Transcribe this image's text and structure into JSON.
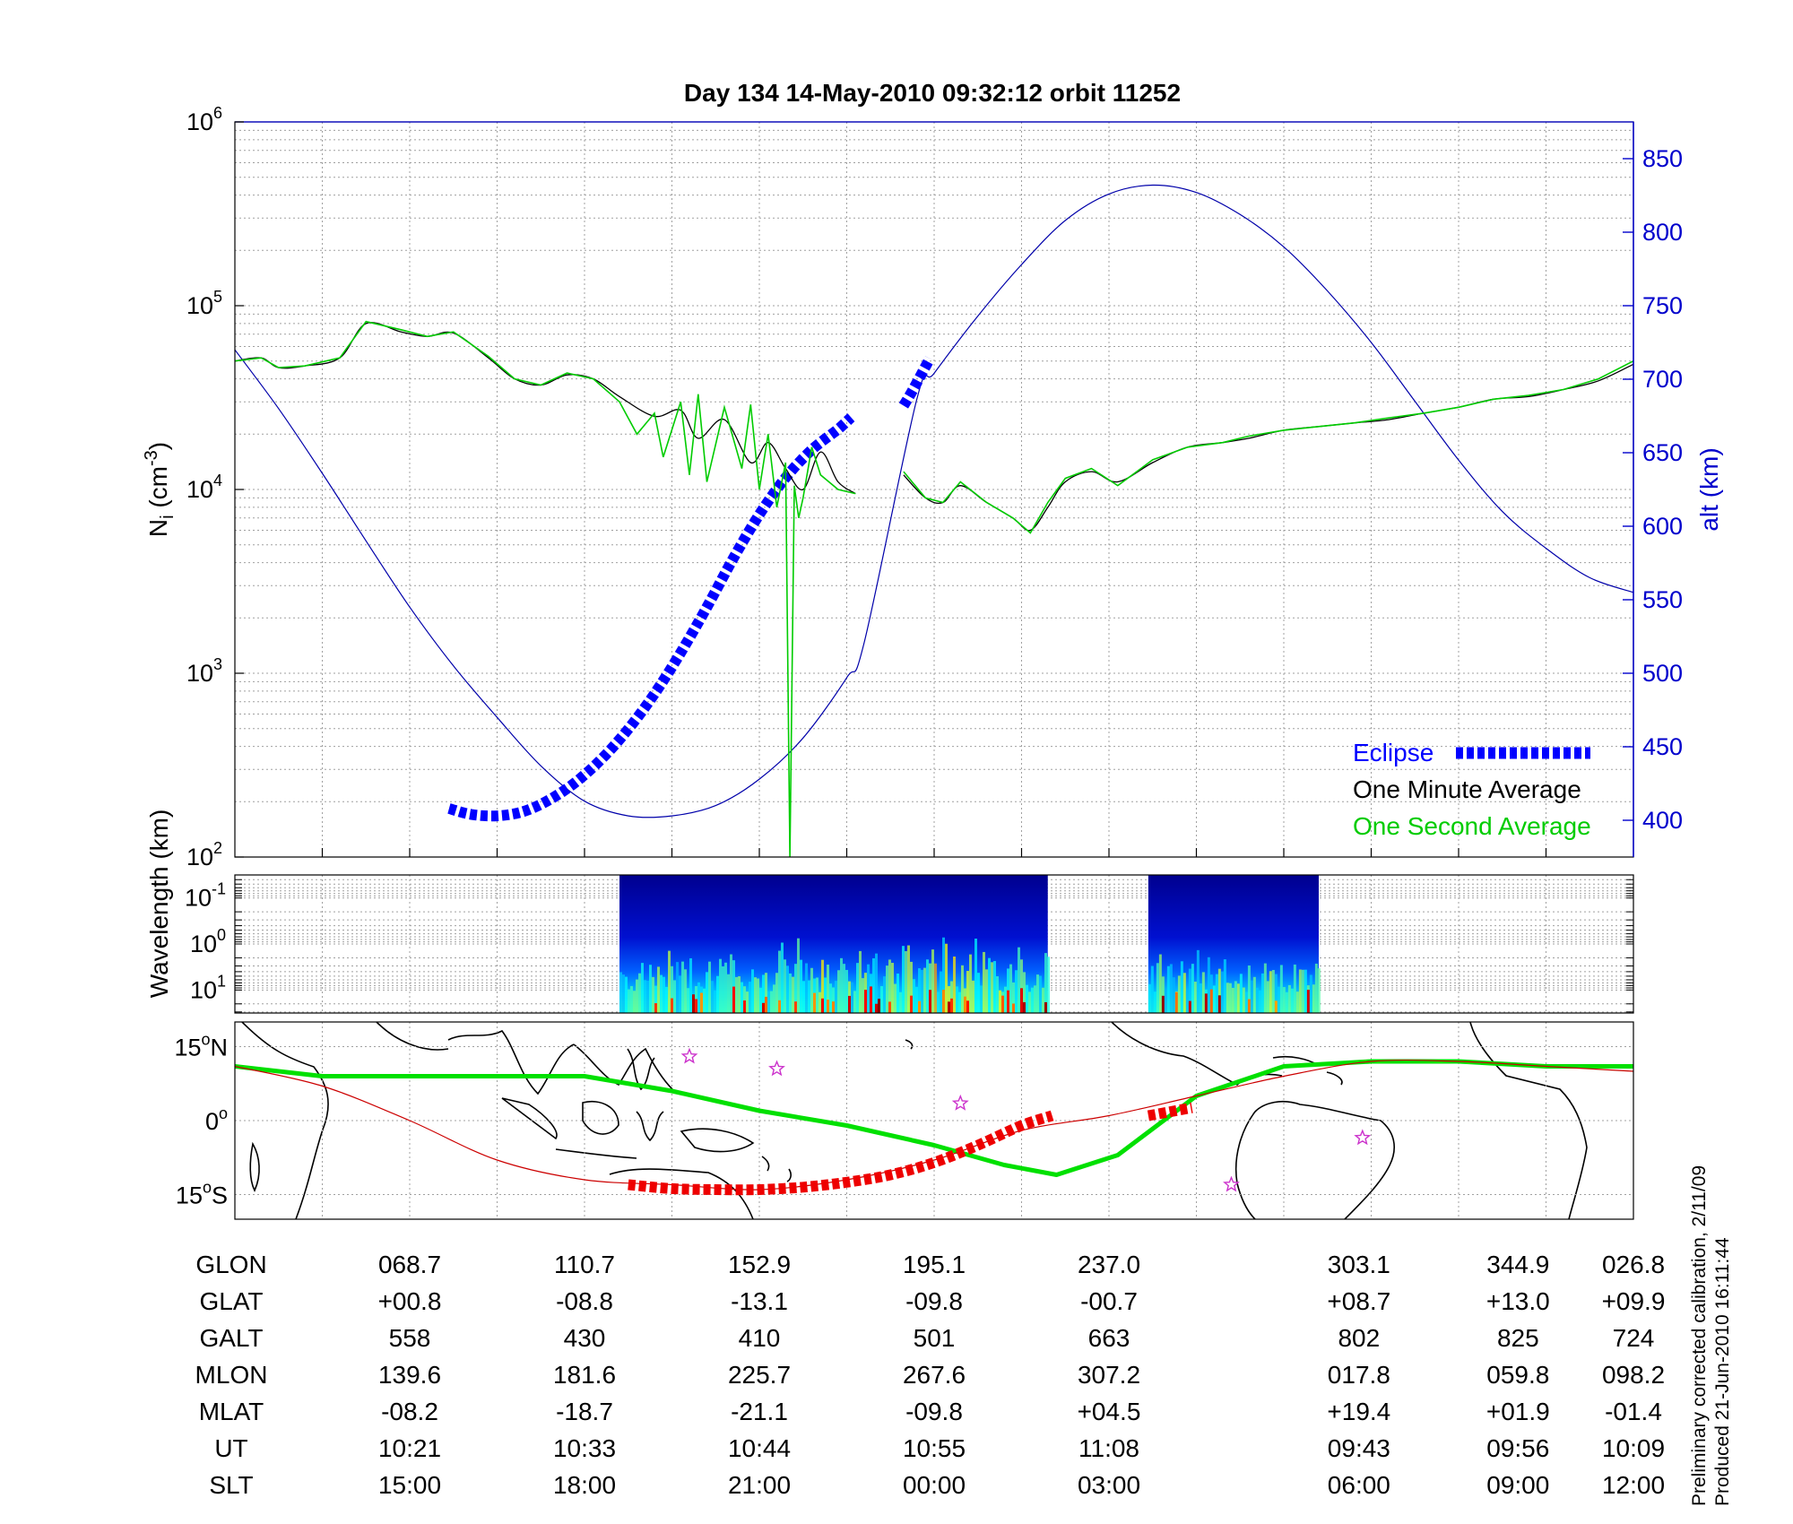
{
  "chart_data": [
    {
      "type": "line",
      "title": "Day 134  14-May-2010 09:32:12   orbit 11252",
      "ylabel_left": "N",
      "ylabel_left_sub": "i",
      "ylabel_left_unit_open": " (cm",
      "ylabel_left_unit_exp": "-3",
      "ylabel_left_unit_close": ")",
      "ylabel_right": "alt (km)",
      "yscale_left": "log",
      "ylim_left": [
        100,
        1000000
      ],
      "yticks_left": [
        {
          "base": "10",
          "exp": "2"
        },
        {
          "base": "10",
          "exp": "3"
        },
        {
          "base": "10",
          "exp": "4"
        },
        {
          "base": "10",
          "exp": "5"
        },
        {
          "base": "10",
          "exp": "6"
        }
      ],
      "ylim_right": [
        375,
        875
      ],
      "yticks_right": [
        "400",
        "450",
        "500",
        "550",
        "600",
        "650",
        "700",
        "750",
        "800",
        "850"
      ],
      "grid": true,
      "legend_placement": "lower-right",
      "legend": [
        {
          "label": "Eclipse",
          "color": "#0000ff",
          "style": "thick-dotted"
        },
        {
          "label": "One Minute Average",
          "color": "#000000",
          "style": "line"
        },
        {
          "label": "One Second Average",
          "color": "#00cc00",
          "style": "line"
        }
      ],
      "series": [
        {
          "key": "altitude",
          "axis": "right",
          "color": "#0000aa",
          "x_pos": [
            0,
            0.5,
            1,
            1.5,
            2,
            2.5,
            3,
            3.5,
            4,
            4.5,
            5,
            5.5,
            6,
            6.5,
            7,
            7.2,
            7.8,
            8,
            8.5,
            9,
            9.5,
            10,
            10.5,
            11,
            11.5,
            12,
            12.5,
            13,
            13.5,
            14,
            14.5,
            15,
            15.5,
            16
          ],
          "y": [
            720,
            680,
            636,
            590,
            545,
            505,
            470,
            437,
            413,
            403,
            403,
            410,
            428,
            456,
            497,
            521,
            686,
            704,
            743,
            778,
            808,
            826,
            832,
            827,
            812,
            790,
            760,
            725,
            685,
            645,
            610,
            585,
            565,
            555
          ]
        },
        {
          "key": "eclipse",
          "axis": "right",
          "color": "#0000ff",
          "segments": [
            {
              "x_pos": [
                2.45,
                2.7,
                3.0,
                3.3,
                3.6,
                3.9,
                4.2,
                4.5,
                4.8,
                5.1,
                5.4,
                5.7,
                6.0,
                6.3,
                6.6,
                6.9,
                7.05
              ],
              "y": [
                408,
                404,
                403,
                406,
                414,
                426,
                442,
                462,
                486,
                514,
                545,
                578,
                608,
                633,
                652,
                666,
                674
              ]
            },
            {
              "x_pos": [
                7.65,
                7.75,
                7.85,
                7.95
              ],
              "y": [
                682,
                692,
                703,
                714
              ]
            }
          ]
        },
        {
          "key": "one_minute_average",
          "axis": "left",
          "color": "#000000",
          "segments": [
            {
              "x_pos": [
                0,
                0.3,
                0.5,
                0.8,
                1.2,
                1.5,
                1.9,
                2.2,
                2.5,
                2.9,
                3.2,
                3.5,
                3.8,
                4.1,
                4.4,
                4.8,
                5.1,
                5.3,
                5.6,
                5.9,
                6.1,
                6.3,
                6.5,
                6.7,
                6.9,
                7.1
              ],
              "y": [
                50000,
                52000,
                46000,
                47000,
                52000,
                80000,
                72000,
                68000,
                71000,
                52000,
                40000,
                37000,
                42000,
                40000,
                32000,
                25000,
                27000,
                19000,
                24000,
                14000,
                18000,
                13000,
                10000,
                16000,
                11000,
                9500
              ]
            },
            {
              "x_pos": [
                7.65,
                7.9,
                8.1,
                8.3,
                8.6,
                8.9,
                9.1,
                9.3,
                9.5,
                9.8,
                10.1,
                10.5,
                10.9,
                11.3,
                11.6,
                12.0,
                12.4,
                12.8,
                13.2,
                13.6,
                14.0,
                14.4,
                14.8,
                15.2,
                15.6,
                16.0
              ],
              "y": [
                12000,
                9000,
                8500,
                10500,
                8500,
                7000,
                6000,
                8000,
                11000,
                12500,
                11000,
                14000,
                17000,
                18000,
                19000,
                21000,
                22000,
                23000,
                24000,
                26000,
                28000,
                31000,
                32000,
                35000,
                39000,
                48000
              ]
            }
          ]
        },
        {
          "key": "one_second_average",
          "axis": "left",
          "color": "#00cc00",
          "segments": [
            {
              "x_pos": [
                0,
                0.3,
                0.5,
                0.8,
                1.2,
                1.5,
                1.9,
                2.2,
                2.5,
                2.9,
                3.2,
                3.5,
                3.8,
                4.1,
                4.4,
                4.6,
                4.8,
                4.9,
                5.1,
                5.2,
                5.3,
                5.4,
                5.6,
                5.8,
                5.9,
                6.0,
                6.1,
                6.2,
                6.3,
                6.35,
                6.4,
                6.45,
                6.5,
                6.6,
                6.7,
                6.9,
                7.1
              ],
              "y": [
                50000,
                52000,
                46000,
                47000,
                52000,
                82000,
                74000,
                68000,
                72000,
                53000,
                40000,
                37000,
                43000,
                40000,
                30000,
                20000,
                26000,
                15000,
                30000,
                12000,
                33000,
                11000,
                28000,
                13000,
                29000,
                10000,
                20000,
                8000,
                14000,
                100,
                10500,
                7000,
                9000,
                17000,
                12000,
                10000,
                9500
              ]
            },
            {
              "x_pos": [
                7.65,
                7.9,
                8.1,
                8.3,
                8.6,
                8.9,
                9.1,
                9.3,
                9.5,
                9.8,
                10.1,
                10.5,
                10.9,
                11.3,
                11.6,
                12.0,
                12.4,
                12.8,
                13.2,
                13.6,
                14.0,
                14.4,
                14.8,
                15.2,
                15.6,
                16.0
              ],
              "y": [
                12500,
                9000,
                8500,
                11000,
                8500,
                7000,
                5800,
                8500,
                11500,
                13000,
                10500,
                14500,
                17000,
                18000,
                19500,
                21000,
                22000,
                23000,
                24500,
                26000,
                28000,
                31000,
                32500,
                35000,
                40000,
                50000
              ]
            }
          ]
        }
      ]
    },
    {
      "type": "heatmap",
      "ylabel": "Wavelength (km)",
      "yscale": "log",
      "yticks": [
        {
          "base": "10",
          "exp": "-1"
        },
        {
          "base": "10",
          "exp": "0"
        },
        {
          "base": "10",
          "exp": "1"
        }
      ],
      "colormap": "jet",
      "data_x_ranges": [
        [
          4.4,
          9.3
        ],
        [
          10.45,
          12.4
        ]
      ],
      "grid": true
    },
    {
      "type": "line",
      "subtype": "map",
      "ylim": [
        -20,
        20
      ],
      "yticks": [
        {
          "deg": "15",
          "hemi": "N"
        },
        {
          "deg": "0",
          "hemi": ""
        },
        {
          "deg": "15",
          "hemi": "S"
        }
      ],
      "series": [
        {
          "key": "geographic_track",
          "color": "#00e000",
          "x_pos": [
            0,
            1,
            2,
            3,
            4,
            5,
            6,
            7,
            8,
            8.8,
            9.4,
            10.1,
            11,
            12,
            13,
            14,
            15,
            16
          ],
          "y": [
            11,
            9,
            9,
            9,
            9,
            6,
            2,
            -1,
            -5,
            -9,
            -11,
            -7,
            5,
            11,
            12,
            12,
            11,
            11
          ]
        },
        {
          "key": "magnetic_track",
          "color": "#cc0000",
          "x_pos": [
            0,
            1,
            2,
            3,
            4,
            5,
            6,
            7,
            8,
            9,
            10,
            11,
            12,
            13,
            14,
            15,
            16
          ],
          "y": [
            11,
            7,
            0,
            -8,
            -12,
            -13,
            -14,
            -12,
            -8,
            -2,
            1,
            5,
            9,
            12,
            12,
            11,
            10
          ]
        },
        {
          "key": "eclipse_magnetic_track",
          "color": "#ee0000",
          "segments": [
            {
              "x_pos": [
                4.5,
                5.0,
                5.5,
                6.0,
                6.5,
                7.0,
                7.5,
                8.0,
                8.5,
                9.0,
                9.35
              ],
              "y": [
                -13,
                -13.8,
                -14,
                -14,
                -13.5,
                -12.5,
                -11,
                -8.5,
                -5,
                -1,
                1
              ]
            },
            {
              "x_pos": [
                10.45,
                10.7,
                10.95
              ],
              "y": [
                1,
                1.8,
                2.6
              ]
            }
          ]
        },
        {
          "key": "stars",
          "color": "#cc33cc",
          "points": [
            [
              5.2,
              13
            ],
            [
              6.2,
              10.5
            ],
            [
              8.3,
              3.5
            ],
            [
              11.4,
              -13
            ],
            [
              12.9,
              -3.5
            ]
          ]
        }
      ]
    }
  ],
  "table": {
    "columns_xpos": [
      0,
      2,
      4,
      6,
      8,
      10,
      13,
      15,
      17
    ],
    "rows": [
      {
        "label": "GLON",
        "values": [
          "068.7",
          "110.7",
          "152.9",
          "195.1",
          "237.0",
          "303.1",
          "344.9",
          "026.8"
        ]
      },
      {
        "label": "GLAT",
        "values": [
          "+00.8",
          "-08.8",
          "-13.1",
          "-09.8",
          "-00.7",
          "+08.7",
          "+13.0",
          "+09.9"
        ]
      },
      {
        "label": "GALT",
        "values": [
          "558",
          "430",
          "410",
          "501",
          "663",
          "802",
          "825",
          "724"
        ]
      },
      {
        "label": "MLON",
        "values": [
          "139.6",
          "181.6",
          "225.7",
          "267.6",
          "307.2",
          "017.8",
          "059.8",
          "098.2"
        ]
      },
      {
        "label": "MLAT",
        "values": [
          "-08.2",
          "-18.7",
          "-21.1",
          "-09.8",
          "+04.5",
          "+19.4",
          "+01.9",
          "-01.4"
        ]
      },
      {
        "label": "UT",
        "values": [
          "10:21",
          "10:33",
          "10:44",
          "10:55",
          "11:08",
          "09:43",
          "09:56",
          "10:09"
        ]
      },
      {
        "label": "SLT",
        "values": [
          "15:00",
          "18:00",
          "21:00",
          "00:00",
          "03:00",
          "06:00",
          "09:00",
          "12:00"
        ]
      }
    ]
  },
  "notes": {
    "line1": "Preliminary corrected calibration, 2/11/09",
    "line2": "Produced 21-Jun-2010 16:11:44"
  }
}
